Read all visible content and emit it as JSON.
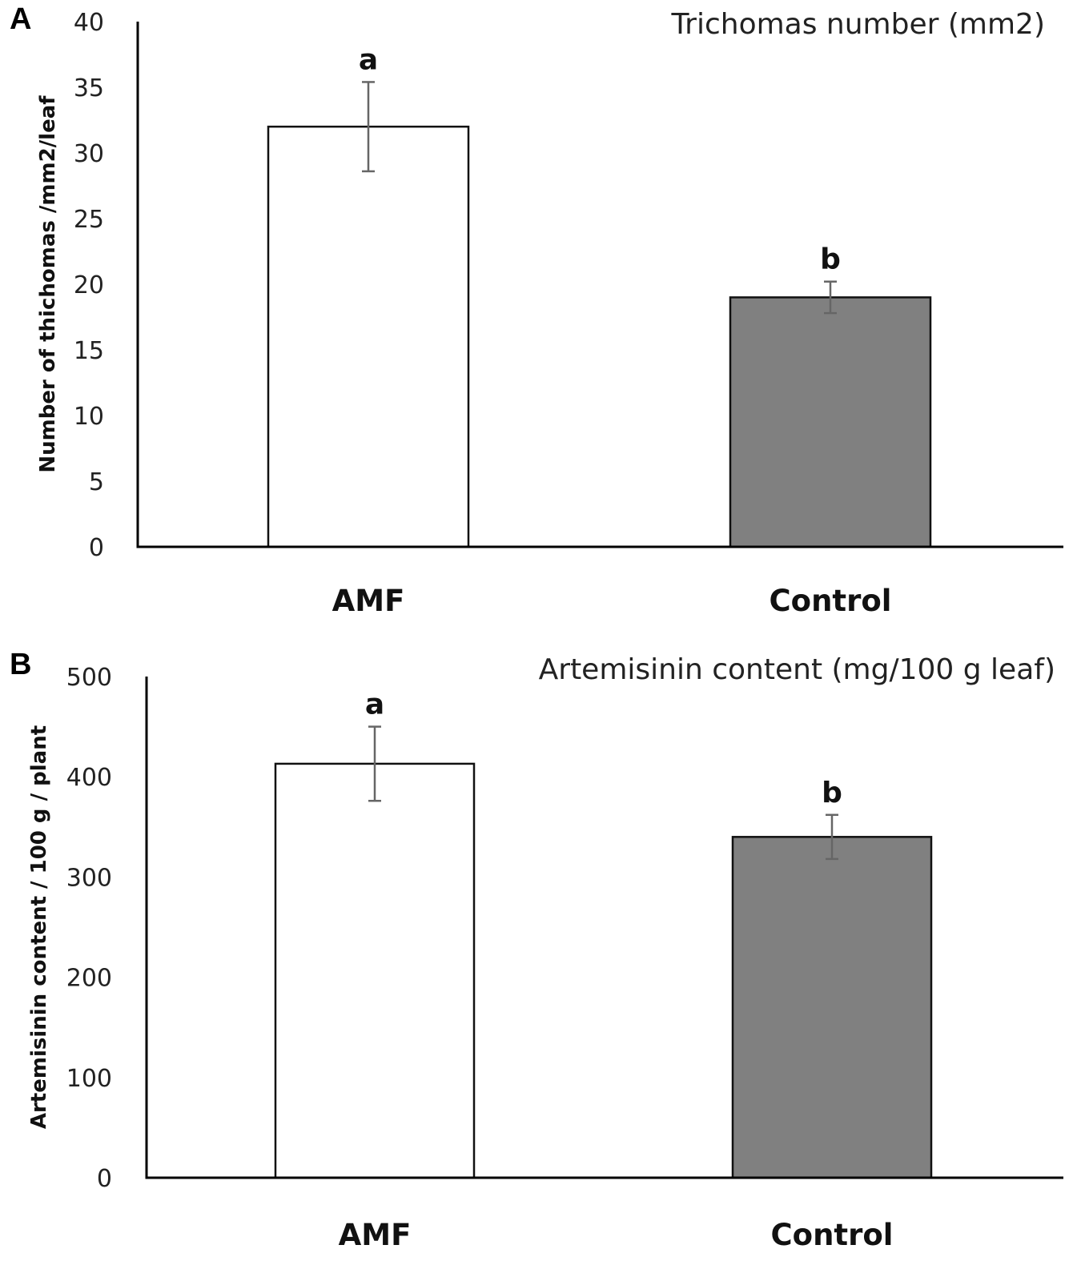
{
  "chart_data": [
    {
      "panel": "A",
      "type": "bar",
      "title": "Trichomas number (mm2)",
      "xlabel": "",
      "ylabel": "Number of thichomas /mm2/leaf",
      "ylim": [
        0,
        40
      ],
      "yticks": [
        0,
        5,
        10,
        15,
        20,
        25,
        30,
        35,
        40
      ],
      "categories": [
        "AMF",
        "Control"
      ],
      "values": [
        32,
        19
      ],
      "errors": [
        3.4,
        1.2
      ],
      "significance": [
        "a",
        "b"
      ],
      "bar_colors": [
        "#ffffff",
        "#808080"
      ],
      "grid": false,
      "legend": "none"
    },
    {
      "panel": "B",
      "type": "bar",
      "title": "Artemisinin content (mg/100 g leaf)",
      "xlabel": "",
      "ylabel": "Artemisinin content / 100 g / plant",
      "ylim": [
        0,
        500
      ],
      "yticks": [
        0,
        100,
        200,
        300,
        400,
        500
      ],
      "categories": [
        "AMF",
        "Control"
      ],
      "values": [
        413,
        340
      ],
      "errors": [
        37,
        22
      ],
      "significance": [
        "a",
        "b"
      ],
      "bar_colors": [
        "#ffffff",
        "#808080"
      ],
      "grid": false,
      "legend": "none"
    }
  ]
}
